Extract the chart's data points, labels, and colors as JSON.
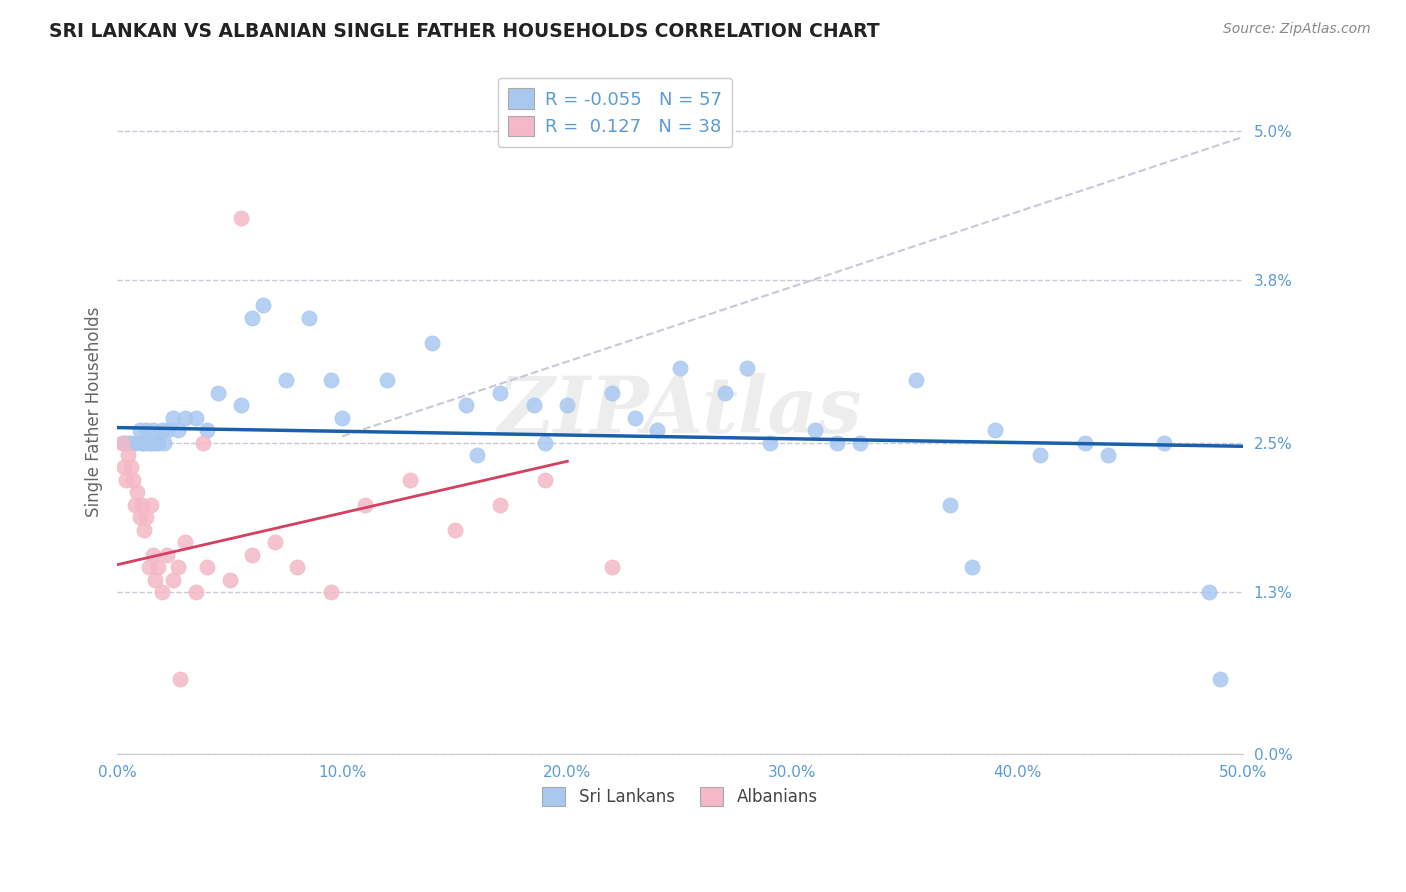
{
  "title": "SRI LANKAN VS ALBANIAN SINGLE FATHER HOUSEHOLDS CORRELATION CHART",
  "source": "Source: ZipAtlas.com",
  "ylabel": "Single Father Households",
  "xlim": [
    0.0,
    50.0
  ],
  "ylim": [
    0.0,
    5.5
  ],
  "ytick_vals": [
    0.0,
    1.3,
    2.5,
    3.8,
    5.0
  ],
  "xtick_vals": [
    0.0,
    10.0,
    20.0,
    30.0,
    40.0,
    50.0
  ],
  "sri_lankan_dot_color": "#a8c8f0",
  "albanian_dot_color": "#f4b8c8",
  "sri_lankan_line_color": "#1a5faa",
  "albanian_solid_line_color": "#d44060",
  "albanian_dashed_line_color": "#c8c8d8",
  "background_color": "#ffffff",
  "grid_color": "#c8c8d8",
  "axis_color": "#5b9bd5",
  "R_sri": -0.055,
  "N_sri": 57,
  "R_alb": 0.127,
  "N_alb": 38,
  "watermark": "ZIPAtlas",
  "sri_line_x0": 0.0,
  "sri_line_y0": 2.62,
  "sri_line_x1": 50.0,
  "sri_line_y1": 2.47,
  "alb_solid_x0": 0.0,
  "alb_solid_y0": 1.52,
  "alb_solid_x1": 20.0,
  "alb_solid_y1": 2.35,
  "alb_dashed_x0": 10.0,
  "alb_dashed_y0": 2.55,
  "alb_dashed_x1": 50.0,
  "alb_dashed_y1": 4.95,
  "sri_lankans_x": [
    0.3,
    0.5,
    0.6,
    0.8,
    1.0,
    1.1,
    1.2,
    1.3,
    1.4,
    1.5,
    1.6,
    1.7,
    1.8,
    2.0,
    2.1,
    2.2,
    2.5,
    2.7,
    3.0,
    3.5,
    4.5,
    5.5,
    6.5,
    7.5,
    8.5,
    10.0,
    12.0,
    14.0,
    15.5,
    17.0,
    18.5,
    20.0,
    22.0,
    24.0,
    25.0,
    27.0,
    29.0,
    31.0,
    33.0,
    35.5,
    37.0,
    39.0,
    41.0,
    43.0,
    46.5,
    48.5,
    28.0,
    23.0,
    32.0,
    38.0,
    44.0,
    49.0,
    16.0,
    9.5,
    6.0,
    19.0,
    4.0
  ],
  "sri_lankans_y": [
    2.5,
    2.5,
    2.5,
    2.5,
    2.6,
    2.5,
    2.5,
    2.6,
    2.5,
    2.5,
    2.6,
    2.5,
    2.5,
    2.6,
    2.5,
    2.6,
    2.7,
    2.6,
    2.7,
    2.7,
    2.9,
    2.8,
    3.6,
    3.0,
    3.5,
    2.7,
    3.0,
    3.3,
    2.8,
    2.9,
    2.8,
    2.8,
    2.9,
    2.6,
    3.1,
    2.9,
    2.5,
    2.6,
    2.5,
    3.0,
    2.0,
    2.6,
    2.4,
    2.5,
    2.5,
    1.3,
    3.1,
    2.7,
    2.5,
    1.5,
    2.4,
    0.6,
    2.4,
    3.0,
    3.5,
    2.5,
    2.6
  ],
  "albanians_x": [
    0.2,
    0.3,
    0.4,
    0.5,
    0.6,
    0.7,
    0.8,
    0.9,
    1.0,
    1.1,
    1.2,
    1.3,
    1.4,
    1.5,
    1.6,
    1.7,
    1.8,
    2.0,
    2.2,
    2.5,
    2.7,
    3.0,
    3.5,
    4.0,
    5.0,
    6.0,
    7.0,
    8.0,
    9.5,
    11.0,
    13.0,
    15.0,
    17.0,
    19.0,
    5.5,
    3.8,
    2.8,
    22.0
  ],
  "albanians_y": [
    2.5,
    2.3,
    2.2,
    2.4,
    2.3,
    2.2,
    2.0,
    2.1,
    1.9,
    2.0,
    1.8,
    1.9,
    1.5,
    2.0,
    1.6,
    1.4,
    1.5,
    1.3,
    1.6,
    1.4,
    1.5,
    1.7,
    1.3,
    1.5,
    1.4,
    1.6,
    1.7,
    1.5,
    1.3,
    2.0,
    2.2,
    1.8,
    2.0,
    2.2,
    4.3,
    2.5,
    0.6,
    1.5
  ]
}
